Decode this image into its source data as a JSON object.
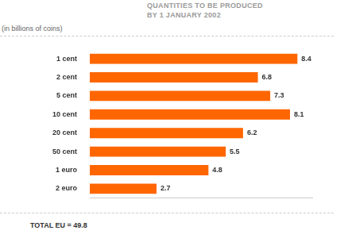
{
  "chart_data": {
    "type": "bar",
    "title": [
      "QUANTITIES TO BE PRODUCED",
      "BY 1 JANUARY 2002"
    ],
    "subtitle": "(in billions of coins)",
    "categories": [
      "1 cent",
      "2 cent",
      "5 cent",
      "10 cent",
      "20 cent",
      "50 cent",
      "1 euro",
      "2 euro"
    ],
    "values": [
      8.4,
      6.8,
      7.3,
      8.1,
      6.2,
      5.5,
      4.8,
      2.7
    ],
    "color": "#ff6600",
    "orientation": "horizontal",
    "xlim": [
      0,
      9
    ],
    "grid": false,
    "data_labels": true,
    "tick_labels": "y",
    "annotation": "TOTAL EU = 49.8"
  }
}
